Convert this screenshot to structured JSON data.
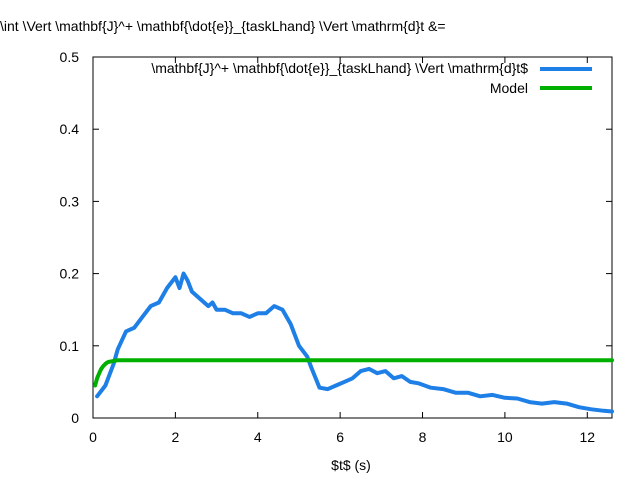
{
  "chart_data": {
    "type": "line",
    "title": "\\int \\Vert \\mathbf{J}^+ \\mathbf{\\dot{e}}_{taskLhand} \\Vert \\mathrm{d}t &=",
    "xlabel": "$t$ (s)",
    "ylabel": "",
    "xlim": [
      0,
      12.6
    ],
    "ylim": [
      0,
      0.5
    ],
    "xticks": [
      0,
      2,
      4,
      6,
      8,
      10,
      12
    ],
    "yticks": [
      0,
      0.1,
      0.2,
      0.3,
      0.4,
      0.5
    ],
    "xtick_labels": [
      "0",
      "2",
      "4",
      "6",
      "8",
      "10",
      "12"
    ],
    "ytick_labels": [
      "0",
      "0.1",
      "0.2",
      "0.3",
      "0.4",
      "0.5"
    ],
    "grid": false,
    "legend_position": "top-right",
    "series": [
      {
        "name": "\\mathbf{J}^+ \\mathbf{\\dot{e}}_{taskLhand} \\Vert \\mathrm{d}t$",
        "color": "#1e7fe6",
        "x": [
          0.1,
          0.3,
          0.5,
          0.6,
          0.8,
          1.0,
          1.2,
          1.4,
          1.6,
          1.8,
          2.0,
          2.1,
          2.2,
          2.3,
          2.4,
          2.6,
          2.8,
          2.9,
          3.0,
          3.2,
          3.4,
          3.6,
          3.8,
          4.0,
          4.2,
          4.4,
          4.6,
          4.8,
          5.0,
          5.2,
          5.3,
          5.5,
          5.7,
          5.9,
          6.1,
          6.3,
          6.5,
          6.7,
          6.9,
          7.1,
          7.3,
          7.5,
          7.7,
          7.9,
          8.2,
          8.5,
          8.8,
          9.1,
          9.4,
          9.7,
          10.0,
          10.3,
          10.6,
          10.9,
          11.2,
          11.5,
          11.8,
          12.1,
          12.4,
          12.6
        ],
        "y": [
          0.03,
          0.045,
          0.075,
          0.095,
          0.12,
          0.125,
          0.14,
          0.155,
          0.16,
          0.18,
          0.195,
          0.18,
          0.2,
          0.19,
          0.175,
          0.165,
          0.155,
          0.16,
          0.15,
          0.15,
          0.145,
          0.145,
          0.14,
          0.145,
          0.145,
          0.155,
          0.15,
          0.13,
          0.1,
          0.085,
          0.07,
          0.042,
          0.04,
          0.045,
          0.05,
          0.055,
          0.065,
          0.068,
          0.062,
          0.065,
          0.055,
          0.058,
          0.05,
          0.048,
          0.042,
          0.04,
          0.035,
          0.035,
          0.03,
          0.032,
          0.028,
          0.027,
          0.022,
          0.02,
          0.022,
          0.02,
          0.015,
          0.012,
          0.01,
          0.009
        ]
      },
      {
        "name": "Model",
        "color": "#00b000",
        "x": [
          0.05,
          0.1,
          0.15,
          0.2,
          0.25,
          0.3,
          0.35,
          0.4,
          0.5,
          0.6,
          1.0,
          2.0,
          4.0,
          6.0,
          8.0,
          10.0,
          12.0,
          12.6
        ],
        "y": [
          0.045,
          0.055,
          0.062,
          0.068,
          0.072,
          0.075,
          0.077,
          0.078,
          0.079,
          0.08,
          0.08,
          0.08,
          0.08,
          0.08,
          0.08,
          0.08,
          0.08,
          0.08
        ]
      }
    ]
  }
}
